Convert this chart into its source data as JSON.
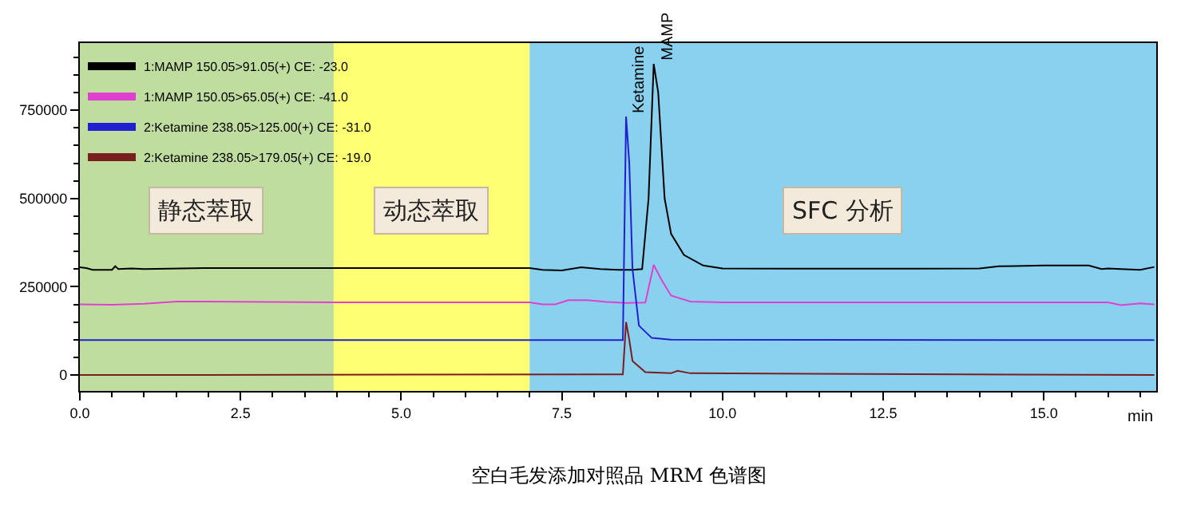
{
  "chart_data": {
    "type": "line",
    "xlabel": "min",
    "xlim": [
      0,
      16.75
    ],
    "xticks": [
      {
        "value": 0,
        "label": "0.0"
      },
      {
        "value": 2.5,
        "label": "2.5"
      },
      {
        "value": 5,
        "label": "5.0"
      },
      {
        "value": 7.5,
        "label": "7.5"
      },
      {
        "value": 10,
        "label": "10.0"
      },
      {
        "value": 12.5,
        "label": "12.5"
      },
      {
        "value": 15,
        "label": "15.0"
      }
    ],
    "ylim": [
      -45000,
      940000
    ],
    "yticks": [
      0,
      250000,
      500000,
      750000
    ],
    "grid": false,
    "legend": "top left",
    "marker": "none",
    "series": [
      {
        "name": "1:MAMP 150.05>91.05(+) CE: -23.0",
        "color": "#000000",
        "x": [
          0,
          0.1,
          0.2,
          0.5,
          0.55,
          0.6,
          0.8,
          1.0,
          2,
          3,
          4,
          5,
          6,
          7,
          7.2,
          7.5,
          7.8,
          8.1,
          8.4,
          8.6,
          8.75,
          8.85,
          8.93,
          9.0,
          9.1,
          9.2,
          9.4,
          9.7,
          10,
          11,
          12,
          13,
          14,
          14.3,
          15,
          15.7,
          15.9,
          16,
          16.2,
          16.5,
          16.72
        ],
        "values": [
          305000,
          303000,
          298000,
          298000,
          308000,
          300000,
          302000,
          300000,
          303000,
          303000,
          303000,
          303000,
          303000,
          303000,
          298000,
          296000,
          305000,
          300000,
          298000,
          298000,
          300000,
          500000,
          881000,
          800000,
          500000,
          400000,
          340000,
          310000,
          302000,
          301000,
          301000,
          301000,
          302000,
          308000,
          310000,
          310000,
          300000,
          302000,
          300000,
          298000,
          306000
        ]
      },
      {
        "name": "1:MAMP 150.05>65.05(+) CE: -41.0",
        "color": "#e040d0",
        "x": [
          0,
          0.5,
          1,
          1.5,
          2,
          4,
          7,
          7.2,
          7.4,
          7.6,
          7.9,
          8.2,
          8.5,
          8.8,
          8.93,
          9.05,
          9.2,
          9.5,
          10,
          12,
          14,
          16,
          16.2,
          16.5,
          16.72
        ],
        "values": [
          200000,
          199000,
          202000,
          208000,
          208000,
          206000,
          206000,
          200000,
          200000,
          212000,
          212000,
          207000,
          204000,
          205000,
          312000,
          270000,
          225000,
          208000,
          206000,
          206000,
          206000,
          206000,
          198000,
          203000,
          200000
        ]
      },
      {
        "name": "2:Ketamine 238.05>125.00(+) CE: -31.0",
        "color": "#2020d0",
        "x": [
          0,
          8.45,
          8.5,
          8.55,
          8.6,
          8.7,
          8.9,
          9.2,
          16.72
        ],
        "values": [
          99000,
          99000,
          732000,
          600000,
          300000,
          140000,
          105000,
          100000,
          99000
        ]
      },
      {
        "name": "2:Ketamine 238.05>179.05(+) CE: -19.0",
        "color": "#7a1f1f",
        "x": [
          0,
          8.45,
          8.5,
          8.55,
          8.6,
          8.8,
          9.2,
          9.3,
          9.5,
          16.72
        ],
        "values": [
          0,
          2000,
          150000,
          100000,
          40000,
          8000,
          5000,
          12000,
          5000,
          0
        ]
      }
    ],
    "bands": [
      {
        "axis": "x",
        "from": 0,
        "to": 3.95,
        "label": "静态萃取",
        "color": "#8cc152"
      },
      {
        "axis": "x",
        "from": 3.95,
        "to": 7.0,
        "label": "动态萃取",
        "color": "#ffff00"
      },
      {
        "axis": "x",
        "from": 7.0,
        "to": 16.75,
        "label": "SFC 分析",
        "color": "#29aae1"
      }
    ],
    "annotations": [
      {
        "text": "Ketamine",
        "x": 8.5,
        "y": 732000
      },
      {
        "text": "MAMP",
        "x": 8.93,
        "y": 881000
      },
      "空白毛发添加对照品 MRM 色谱图"
    ]
  }
}
